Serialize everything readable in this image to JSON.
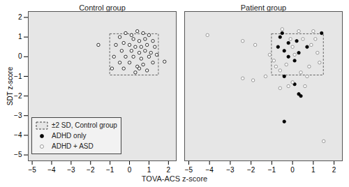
{
  "chart_data": {
    "type": "scatter",
    "xlabel": "TOVA-ACS z-score",
    "ylabel": "SDT z-score",
    "xlim": [
      -5.2,
      2.4
    ],
    "ylim": [
      -5.3,
      2.3
    ],
    "xticks": [
      -5,
      -4,
      -3,
      -2,
      -1,
      0,
      1,
      2
    ],
    "yticks": [
      -5,
      -4,
      -3,
      -2,
      -1,
      0,
      1,
      2
    ],
    "legend": "lower left",
    "reference_box": {
      "label": "±2 SD, Control group",
      "x": [
        -1.0,
        1.5
      ],
      "y": [
        -0.95,
        1.15
      ],
      "line_style": "dashed",
      "color": "#444444"
    },
    "panels": [
      {
        "title": "Control group",
        "series": [
          {
            "color": "#000000",
            "marker": "open",
            "x": [
              -1.6,
              1.8,
              -0.5,
              -0.2,
              0.1,
              0.4,
              0.7,
              1.0,
              0.2,
              0.5,
              0.8,
              -0.3,
              -0.7,
              0.0,
              0.3,
              0.6,
              0.9,
              1.2,
              1.3,
              -0.4,
              0.1,
              0.5,
              0.8,
              1.1,
              -0.8,
              -0.2,
              0.2,
              0.6,
              1.0,
              1.4,
              -0.5,
              0.0,
              0.4,
              0.7,
              1.2,
              -0.9,
              -0.3,
              0.5,
              0.9,
              0.3
            ],
            "y": [
              0.6,
              -0.25,
              1.0,
              1.2,
              1.1,
              1.3,
              1.2,
              1.1,
              0.9,
              0.8,
              0.9,
              0.7,
              0.6,
              0.6,
              0.5,
              0.5,
              0.6,
              0.8,
              0.5,
              0.3,
              0.3,
              0.2,
              0.3,
              0.2,
              0.0,
              0.0,
              0.0,
              -0.1,
              0.0,
              0.1,
              -0.3,
              -0.3,
              -0.5,
              -0.4,
              -0.3,
              -0.6,
              -0.6,
              -0.6,
              -0.7,
              -0.8
            ]
          }
        ]
      },
      {
        "title": "Patient group",
        "tick_labels": "x",
        "series": [
          {
            "name": "ADHD only",
            "color": "#000000",
            "marker": "filled",
            "x": [
              -0.6,
              -0.5,
              -0.2,
              0.2,
              1.4,
              -0.4,
              0.3,
              -0.2,
              0.1,
              -0.4,
              0.1,
              0.3,
              0.4,
              -0.4,
              0.7,
              -0.7
            ],
            "y": [
              1.0,
              1.2,
              0.7,
              0.8,
              1.2,
              0.3,
              0.2,
              0.0,
              -0.2,
              -1.0,
              -1.4,
              -1.9,
              -2.0,
              -3.3,
              0.5,
              0.5
            ]
          },
          {
            "name": "ADHD + ASD",
            "color": "#808080",
            "marker": "open",
            "x": [
              -4.1,
              -2.4,
              -1.8,
              -2.4,
              -1.9,
              -1.3,
              -1.1,
              -0.9,
              -0.8,
              -0.6,
              -0.5,
              0.0,
              0.3,
              0.5,
              0.9,
              1.0,
              1.2,
              1.3,
              0.8,
              0.4,
              0.6,
              0.0,
              -0.2,
              -0.6,
              1.5,
              0.1,
              -0.3,
              0.7,
              1.1,
              -0.1
            ],
            "y": [
              1.1,
              0.8,
              0.6,
              -1.1,
              -1.2,
              -1.0,
              0.1,
              -0.2,
              -0.5,
              -0.7,
              1.4,
              0.5,
              1.3,
              0.9,
              0.6,
              1.3,
              0.2,
              -0.3,
              -0.5,
              -0.8,
              -1.5,
              -1.3,
              -1.5,
              -1.6,
              -4.3,
              0.1,
              -0.4,
              -1.0,
              0.9,
              0.9
            ]
          }
        ]
      }
    ]
  }
}
